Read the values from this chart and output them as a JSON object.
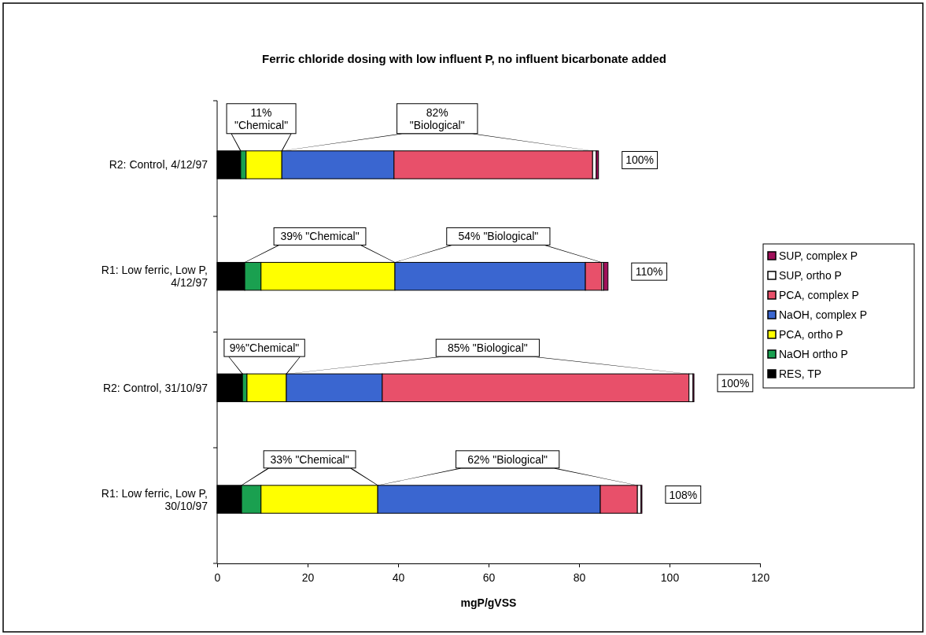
{
  "chart_data": {
    "type": "bar",
    "orientation": "horizontal",
    "stacked": true,
    "title": "Ferric chloride dosing with low influent P, no influent bicarbonate added",
    "xlabel": "mgP/gVSS",
    "categories": [
      "R2: Control, 4/12/97",
      "R1: Low ferric, Low P, 4/12/97",
      "R2: Control, 31/10/97",
      "R1: Low ferric, Low P, 30/10/97"
    ],
    "series": [
      {
        "name": "RES, TP",
        "color": "#000000",
        "values": [
          5.2,
          6.1,
          5.6,
          5.4
        ]
      },
      {
        "name": "NaOH ortho P",
        "color": "#1aa050",
        "values": [
          1.2,
          3.6,
          1.0,
          4.3
        ]
      },
      {
        "name": "PCA, ortho P",
        "color": "#ffff00",
        "values": [
          7.9,
          29.6,
          8.7,
          25.8
        ]
      },
      {
        "name": "NaOH, complex P",
        "color": "#3a66d0",
        "values": [
          24.8,
          42.1,
          21.2,
          49.2
        ]
      },
      {
        "name": "PCA, complex P",
        "color": "#e8506a",
        "values": [
          43.9,
          3.6,
          67.8,
          8.2
        ]
      },
      {
        "name": "SUP, ortho P",
        "color": "#ffffff",
        "values": [
          0.8,
          0.4,
          0.9,
          0.8
        ]
      },
      {
        "name": "SUP, complex P",
        "color": "#a0105a",
        "values": [
          0.5,
          1.0,
          0.2,
          0.2
        ]
      }
    ],
    "xlim": [
      0,
      120
    ],
    "xticks": [
      0,
      20,
      40,
      60,
      80,
      100,
      120
    ],
    "grid": false,
    "legend": "right",
    "annotations": [
      "11%\n\"Chemical\"",
      "82%\n\"Biological\"",
      "100%",
      "39% \"Chemical\"",
      "54% \"Biological\"",
      "110%",
      "9%\"Chemical\"",
      "85% \"Biological\"",
      "100%",
      "33% \"Chemical\"",
      "62% \"Biological\"",
      "108%"
    ]
  }
}
